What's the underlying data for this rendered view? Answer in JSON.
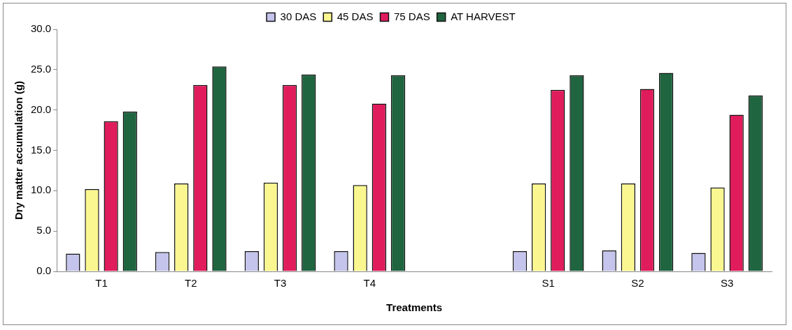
{
  "chart_data": {
    "type": "bar",
    "xlabel": "Treatments",
    "ylabel": "Dry matter accumulation (g)",
    "categories": [
      "T1",
      "T2",
      "T3",
      "T4",
      null,
      "S1",
      "S2",
      "S3"
    ],
    "series": [
      {
        "name": "30 DAS",
        "color": "#c4c4ec",
        "values": [
          2.2,
          2.4,
          2.5,
          2.5,
          null,
          2.5,
          2.6,
          2.3
        ]
      },
      {
        "name": "45 DAS",
        "color": "#fbf790",
        "values": [
          10.2,
          10.9,
          11.0,
          10.7,
          null,
          10.9,
          10.9,
          10.4
        ]
      },
      {
        "name": "75 DAS",
        "color": "#e01c5c",
        "values": [
          18.6,
          23.1,
          23.1,
          20.8,
          null,
          22.5,
          22.6,
          19.4
        ]
      },
      {
        "name": "AT HARVEST",
        "color": "#1f6540",
        "values": [
          19.8,
          25.4,
          24.4,
          24.3,
          null,
          24.3,
          24.6,
          21.8
        ]
      }
    ],
    "ylim": [
      0,
      30
    ],
    "yticks": [
      {
        "value": 0,
        "label": "0.0"
      },
      {
        "value": 5,
        "label": "5.0"
      },
      {
        "value": 10,
        "label": "10.0"
      },
      {
        "value": 15,
        "label": "15.0"
      },
      {
        "value": 20,
        "label": "20.0"
      },
      {
        "value": 25,
        "label": "25.0"
      },
      {
        "value": 30,
        "label": "30.0"
      }
    ],
    "grid": false,
    "legend": "top"
  }
}
